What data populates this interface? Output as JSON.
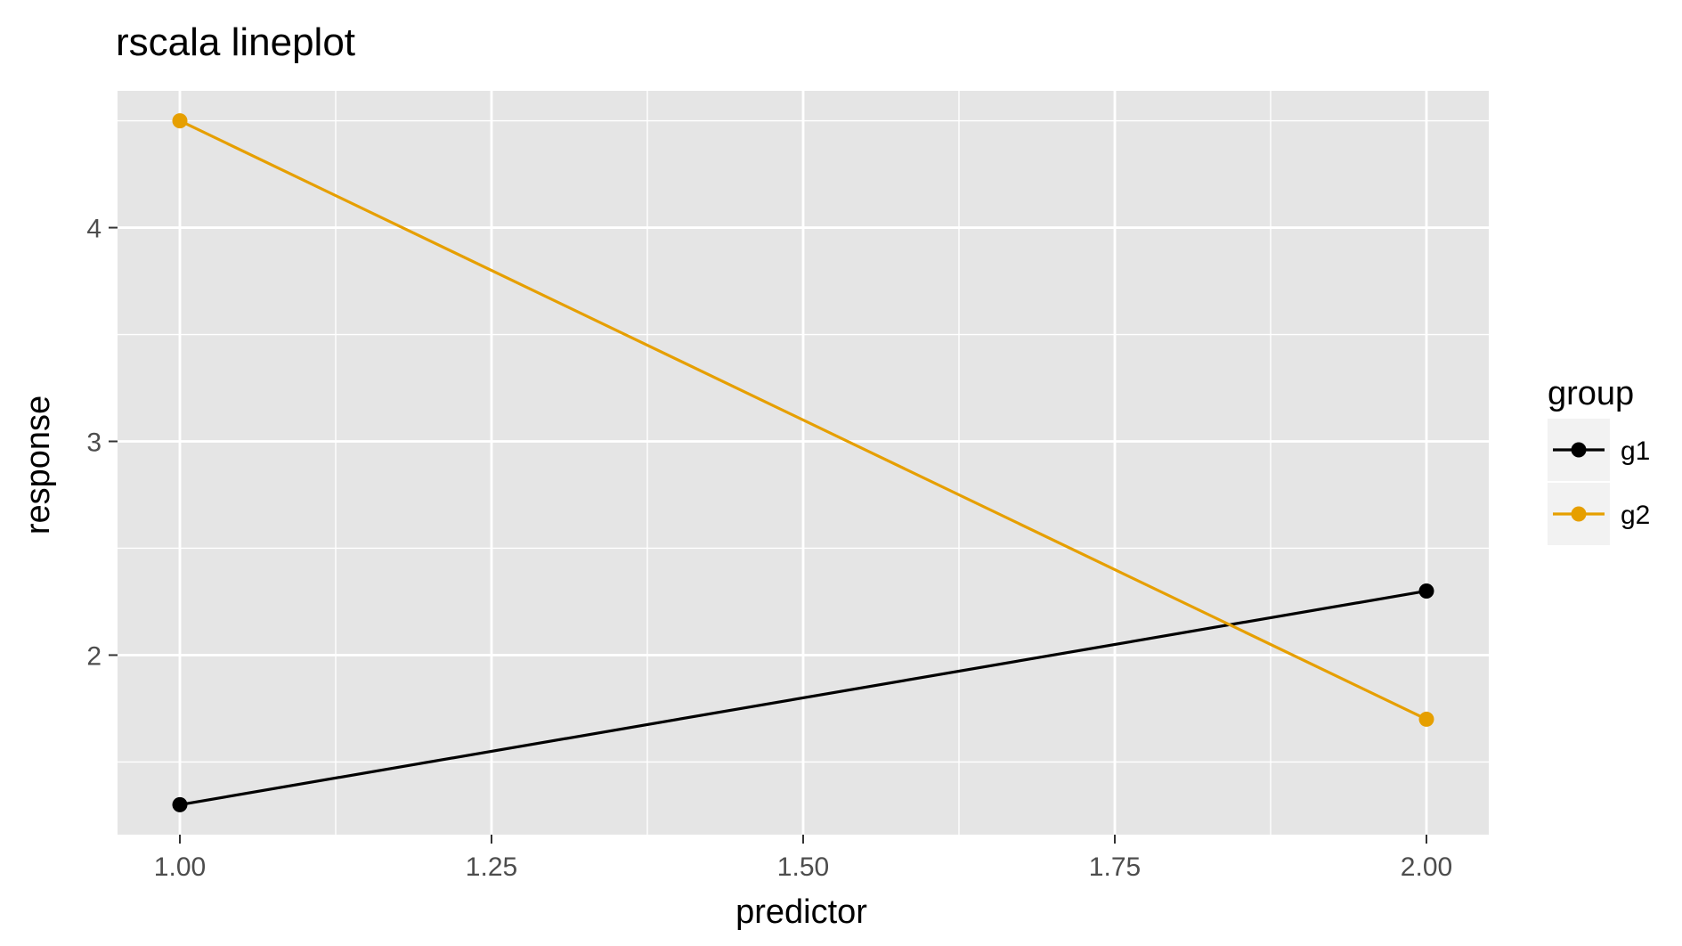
{
  "chart_data": {
    "type": "line",
    "title": "rscala lineplot",
    "xlabel": "predictor",
    "ylabel": "response",
    "x": [
      1.0,
      2.0
    ],
    "xlim": [
      0.95,
      2.05
    ],
    "ylim": [
      1.16,
      4.64
    ],
    "xticks": [
      1.0,
      1.25,
      1.5,
      1.75,
      2.0
    ],
    "xtick_labels": [
      "1.00",
      "1.25",
      "1.50",
      "1.75",
      "2.00"
    ],
    "yticks": [
      2,
      3,
      4
    ],
    "ytick_labels": [
      "2",
      "3",
      "4"
    ],
    "grid": true,
    "background": "#e5e5e5",
    "legend": {
      "title": "group",
      "placement": "right"
    },
    "series": [
      {
        "name": "g1",
        "color": "#000000",
        "values": [
          1.3,
          2.3
        ]
      },
      {
        "name": "g2",
        "color": "#e69f00",
        "values": [
          4.5,
          1.7
        ]
      }
    ]
  }
}
